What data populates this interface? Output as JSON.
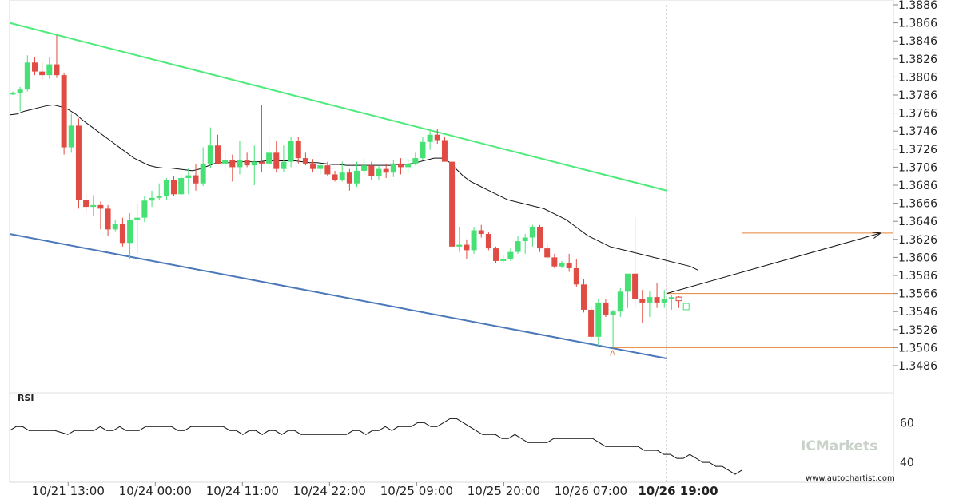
{
  "chart_data": {
    "type": "candlestick",
    "y_ticks": [
      "1.3886",
      "1.3866",
      "1.3846",
      "1.3826",
      "1.3806",
      "1.3786",
      "1.3766",
      "1.3746",
      "1.3726",
      "1.3706",
      "1.3686",
      "1.3666",
      "1.3646",
      "1.3626",
      "1.3606",
      "1.3586",
      "1.3566",
      "1.3546",
      "1.3526",
      "1.3506",
      "1.3486"
    ],
    "ylim": [
      1.347,
      1.389
    ],
    "x_ticks": [
      "10/21 13:00",
      "10/24 00:00",
      "10/24 11:00",
      "10/24 22:00",
      "10/25 09:00",
      "10/25 20:00",
      "10/26 07:00",
      "10/26 19:00"
    ],
    "highlighted_x_tick": "10/26 19:00",
    "candles": [
      [
        1.3788,
        1.379,
        1.3786,
        1.3788
      ],
      [
        1.3788,
        1.3795,
        1.3768,
        1.3792
      ],
      [
        1.3792,
        1.383,
        1.379,
        1.3822
      ],
      [
        1.3822,
        1.3828,
        1.3808,
        1.3812
      ],
      [
        1.3812,
        1.3822,
        1.3803,
        1.3808
      ],
      [
        1.3808,
        1.3828,
        1.3804,
        1.382
      ],
      [
        1.382,
        1.3852,
        1.3805,
        1.3808
      ],
      [
        1.3808,
        1.381,
        1.372,
        1.3728
      ],
      [
        1.3728,
        1.3765,
        1.3722,
        1.3752
      ],
      [
        1.3752,
        1.376,
        1.366,
        1.367
      ],
      [
        1.367,
        1.3676,
        1.3655,
        1.3662
      ],
      [
        1.3662,
        1.3675,
        1.3652,
        1.3664
      ],
      [
        1.3664,
        1.3668,
        1.3637,
        1.366
      ],
      [
        1.366,
        1.3664,
        1.363,
        1.3637
      ],
      [
        1.3637,
        1.3648,
        1.3635,
        1.3643
      ],
      [
        1.3643,
        1.365,
        1.3618,
        1.3622
      ],
      [
        1.3622,
        1.3655,
        1.3604,
        1.3648
      ],
      [
        1.3648,
        1.3665,
        1.361,
        1.365
      ],
      [
        1.365,
        1.3674,
        1.3645,
        1.3669
      ],
      [
        1.3669,
        1.368,
        1.3662,
        1.3672
      ],
      [
        1.3672,
        1.3688,
        1.367,
        1.3674
      ],
      [
        1.3674,
        1.3694,
        1.367,
        1.3692
      ],
      [
        1.3692,
        1.3696,
        1.3674,
        1.3676
      ],
      [
        1.3676,
        1.3698,
        1.3675,
        1.3694
      ],
      [
        1.3694,
        1.3705,
        1.3676,
        1.3697
      ],
      [
        1.3697,
        1.371,
        1.368,
        1.3688
      ],
      [
        1.3688,
        1.3728,
        1.3685,
        1.371
      ],
      [
        1.371,
        1.375,
        1.3705,
        1.373
      ],
      [
        1.373,
        1.3742,
        1.371,
        1.371
      ],
      [
        1.371,
        1.3725,
        1.37,
        1.3714
      ],
      [
        1.3714,
        1.372,
        1.369,
        1.3706
      ],
      [
        1.3706,
        1.3735,
        1.3698,
        1.3714
      ],
      [
        1.3714,
        1.3722,
        1.3706,
        1.3708
      ],
      [
        1.3708,
        1.373,
        1.3686,
        1.3712
      ],
      [
        1.3712,
        1.3775,
        1.37,
        1.371
      ],
      [
        1.371,
        1.374,
        1.3705,
        1.3722
      ],
      [
        1.3722,
        1.3735,
        1.37,
        1.3704
      ],
      [
        1.3704,
        1.373,
        1.37,
        1.3712
      ],
      [
        1.3712,
        1.374,
        1.3706,
        1.3735
      ],
      [
        1.3735,
        1.374,
        1.371,
        1.3716
      ],
      [
        1.3716,
        1.3722,
        1.3708,
        1.371
      ],
      [
        1.371,
        1.3715,
        1.37,
        1.3704
      ],
      [
        1.3704,
        1.371,
        1.3698,
        1.3708
      ],
      [
        1.3708,
        1.3712,
        1.3696,
        1.3698
      ],
      [
        1.3698,
        1.3702,
        1.369,
        1.3692
      ],
      [
        1.3692,
        1.3712,
        1.369,
        1.37
      ],
      [
        1.37,
        1.3704,
        1.368,
        1.3688
      ],
      [
        1.3688,
        1.3712,
        1.3684,
        1.3702
      ],
      [
        1.3702,
        1.3716,
        1.3698,
        1.3708
      ],
      [
        1.3708,
        1.3712,
        1.3692,
        1.3696
      ],
      [
        1.3696,
        1.3708,
        1.3692,
        1.3704
      ],
      [
        1.3704,
        1.371,
        1.3694,
        1.37
      ],
      [
        1.37,
        1.3714,
        1.3695,
        1.371
      ],
      [
        1.371,
        1.3716,
        1.3698,
        1.3706
      ],
      [
        1.3706,
        1.3715,
        1.37,
        1.371
      ],
      [
        1.371,
        1.3722,
        1.3708,
        1.3716
      ],
      [
        1.3716,
        1.374,
        1.3714,
        1.3734
      ],
      [
        1.3734,
        1.3746,
        1.3725,
        1.3742
      ],
      [
        1.3742,
        1.3748,
        1.3732,
        1.3736
      ],
      [
        1.3736,
        1.374,
        1.3712,
        1.3712
      ],
      [
        1.3712,
        1.3712,
        1.3616,
        1.3618
      ],
      [
        1.3618,
        1.364,
        1.3612,
        1.362
      ],
      [
        1.362,
        1.3626,
        1.3604,
        1.3614
      ],
      [
        1.3614,
        1.364,
        1.361,
        1.3636
      ],
      [
        1.3636,
        1.3642,
        1.3628,
        1.3632
      ],
      [
        1.3632,
        1.3634,
        1.3614,
        1.3616
      ],
      [
        1.3616,
        1.3618,
        1.36,
        1.3602
      ],
      [
        1.3602,
        1.3608,
        1.36,
        1.3604
      ],
      [
        1.3604,
        1.3616,
        1.3602,
        1.3612
      ],
      [
        1.3612,
        1.363,
        1.361,
        1.3624
      ],
      [
        1.3624,
        1.3632,
        1.361,
        1.3628
      ],
      [
        1.3628,
        1.3642,
        1.3618,
        1.364
      ],
      [
        1.364,
        1.3642,
        1.3612,
        1.3616
      ],
      [
        1.3616,
        1.362,
        1.3604,
        1.3606
      ],
      [
        1.3606,
        1.361,
        1.3594,
        1.3596
      ],
      [
        1.3596,
        1.3602,
        1.3594,
        1.36
      ],
      [
        1.36,
        1.361,
        1.359,
        1.3594
      ],
      [
        1.3594,
        1.3604,
        1.3573,
        1.3576
      ],
      [
        1.3576,
        1.3582,
        1.3545,
        1.3548
      ],
      [
        1.3548,
        1.3552,
        1.3515,
        1.3518
      ],
      [
        1.3518,
        1.356,
        1.3508,
        1.3556
      ],
      [
        1.3556,
        1.356,
        1.354,
        1.3542
      ],
      [
        1.3542,
        1.3548,
        1.3506,
        1.3546
      ],
      [
        1.3546,
        1.3572,
        1.354,
        1.3568
      ],
      [
        1.3568,
        1.3586,
        1.355,
        1.3588
      ],
      [
        1.3588,
        1.365,
        1.355,
        1.356
      ],
      [
        1.356,
        1.357,
        1.3533,
        1.3556
      ],
      [
        1.3556,
        1.3568,
        1.354,
        1.3562
      ],
      [
        1.3562,
        1.3578,
        1.355,
        1.3556
      ],
      [
        1.3556,
        1.357,
        1.355,
        1.356
      ],
      [
        1.356,
        1.3564,
        1.3548,
        1.3562
      ]
    ],
    "candles_forecast": [
      [
        1.3562,
        1.3563,
        1.355,
        1.3558
      ],
      [
        1.3548,
        1.3555,
        1.3548,
        1.3555
      ]
    ],
    "moving_average": [
      1.3764,
      1.3765,
      1.3768,
      1.377,
      1.3772,
      1.3774,
      1.3775,
      1.3773,
      1.377,
      1.3765,
      1.3758,
      1.3752,
      1.3746,
      1.374,
      1.3734,
      1.3728,
      1.3722,
      1.3716,
      1.3712,
      1.3708,
      1.3706,
      1.3705,
      1.3705,
      1.3704,
      1.3703,
      1.3702,
      1.3704,
      1.3707,
      1.371,
      1.3711,
      1.3711,
      1.3712,
      1.3712,
      1.3712,
      1.3712,
      1.3713,
      1.3713,
      1.3713,
      1.3713,
      1.3713,
      1.3712,
      1.3711,
      1.3711,
      1.371,
      1.3709,
      1.3709,
      1.3708,
      1.3708,
      1.3708,
      1.3708,
      1.3708,
      1.3708,
      1.3708,
      1.3709,
      1.3709,
      1.371,
      1.3712,
      1.3714,
      1.3716,
      1.3716,
      1.3712,
      1.3704,
      1.3696,
      1.369,
      1.3686,
      1.3682,
      1.3678,
      1.3674,
      1.367,
      1.3668,
      1.3666,
      1.3664,
      1.3662,
      1.366,
      1.3656,
      1.3652,
      1.3648,
      1.3642,
      1.3636,
      1.363,
      1.3626,
      1.3622,
      1.3618,
      1.3616,
      1.3614,
      1.3612,
      1.361,
      1.3608,
      1.3606,
      1.3604,
      1.3602,
      1.36,
      1.3598,
      1.3596,
      1.3592
    ],
    "upper_channel": {
      "start": [
        0,
        1.3866
      ],
      "end": [
        89,
        1.368
      ]
    },
    "lower_channel": {
      "start": [
        0,
        1.3632
      ],
      "end": [
        89,
        1.3494
      ]
    },
    "levels": [
      1.3633,
      1.3566,
      1.3506
    ],
    "forecast_arrow": {
      "from": [
        89,
        1.3566
      ],
      "to": [
        110,
        1.3633
      ]
    },
    "point_label": "A",
    "rsi_label": "RSI",
    "rsi_ticks": [
      "60",
      "40"
    ],
    "rsi_range": [
      30,
      75
    ],
    "rsi_values": [
      56,
      58,
      58,
      56,
      56,
      56,
      56,
      56,
      55,
      54,
      56,
      56,
      56,
      56,
      58,
      56,
      56,
      58,
      56,
      56,
      56,
      58,
      58,
      58,
      58,
      58,
      56,
      56,
      58,
      58,
      58,
      58,
      58,
      58,
      56,
      56,
      54,
      56,
      56,
      54,
      56,
      56,
      54,
      56,
      56,
      54,
      54,
      54,
      54,
      54,
      54,
      54,
      54,
      56,
      56,
      54,
      56,
      56,
      58,
      56,
      58,
      58,
      58,
      60,
      60,
      58,
      58,
      60,
      62,
      62,
      60,
      58,
      56,
      54,
      54,
      54,
      52,
      52,
      54,
      52,
      50,
      50,
      50,
      50,
      52,
      52,
      52,
      52,
      52,
      52,
      52,
      50,
      48,
      48,
      48,
      48,
      48,
      48,
      46,
      46,
      46,
      44,
      44,
      42,
      42,
      44,
      42,
      40,
      40,
      38,
      38,
      36,
      34,
      36
    ],
    "colors": {
      "bull": "#47e075",
      "bear": "#e04b43",
      "upper_line": "#4deb7a",
      "lower_line": "#4a78b8",
      "level": "#e8823a",
      "ma": "#111111"
    }
  },
  "watermark": "ICMarkets",
  "site": "www.autochartist.com"
}
